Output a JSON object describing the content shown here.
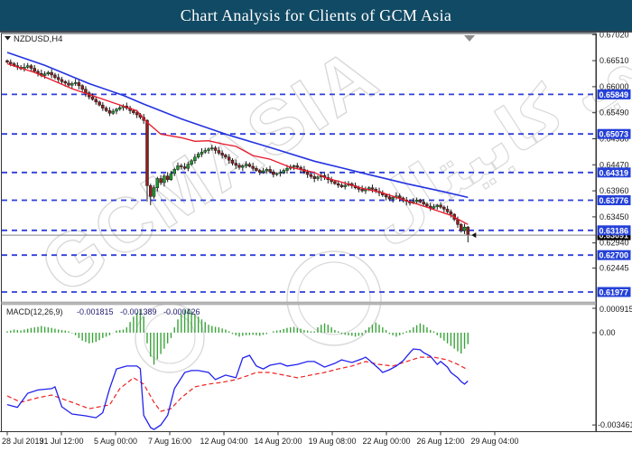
{
  "title_bar": {
    "title": "Chart Analysis for Clients of GCM Asia"
  },
  "chart": {
    "symbol_label": "NZDUSD,H4",
    "macd_label": "MACD(12,26,9)",
    "macd_values": [
      "-0.001815",
      "-0.001389",
      "-0.000426"
    ]
  },
  "watermark": {
    "text_main": "GCMASIA",
    "text_arabic": "ابي كابيتال"
  },
  "colors": {
    "title_bar_bg": "#114a64",
    "bull": "#1f9b2e",
    "bear": "#8e1f1f",
    "wick": "#1a1a1a",
    "ma_slow_blue": "#2433e0",
    "ma_fast_red": "#e8192c",
    "sr_line": "#2f3fd8",
    "price_tag_bg": "#2440d8",
    "current_tag_bg": "#000000",
    "current_line": "#808080",
    "macd_line": "#2222ee",
    "macd_signal": "#ee2222",
    "macd_hist": "#3aa33a",
    "watermark": "#d9d9d9",
    "axis_text": "#1a1a1a"
  },
  "chart_data": {
    "type": "candlestick",
    "symbol": "NZDUSD",
    "timeframe": "H4",
    "title": "Chart Analysis for Clients of GCM Asia",
    "x_labels": [
      "28 Jul 2019",
      "31 Jul 12:00",
      "5 Aug 00:00",
      "7 Aug 16:00",
      "12 Aug 04:00",
      "14 Aug 20:00",
      "19 Aug 08:00",
      "22 Aug 00:00",
      "26 Aug 12:00",
      "29 Aug 04:00"
    ],
    "price_axis_ticks": [
      "0.67020",
      "0.66510",
      "0.66000",
      "0.65490",
      "0.64980",
      "0.64470",
      "0.63960",
      "0.63450",
      "0.62940",
      "0.62445"
    ],
    "price_axis_range": {
      "top": 0.67025,
      "bottom": 0.6175
    },
    "sr_levels": [
      0.65849,
      0.65073,
      0.64319,
      0.63776,
      0.63186,
      0.627,
      0.61977
    ],
    "current_price": 0.63091,
    "current_price_label": "0.63091",
    "candles": {
      "closes": [
        0.6648,
        0.6645,
        0.6641,
        0.6638,
        0.6635,
        0.6638,
        0.6641,
        0.6636,
        0.663,
        0.6626,
        0.6622,
        0.6625,
        0.6628,
        0.6623,
        0.6618,
        0.6614,
        0.661,
        0.6607,
        0.6603,
        0.6606,
        0.6608,
        0.6602,
        0.6595,
        0.6588,
        0.658,
        0.6575,
        0.657,
        0.6564,
        0.6558,
        0.6553,
        0.6548,
        0.6552,
        0.6556,
        0.6559,
        0.6562,
        0.6558,
        0.6553,
        0.6549,
        0.6545,
        0.654,
        0.6534,
        0.6406,
        0.6385,
        0.6402,
        0.642,
        0.6412,
        0.6425,
        0.6418,
        0.643,
        0.6438,
        0.6445,
        0.6443,
        0.644,
        0.6448,
        0.6455,
        0.6462,
        0.6468,
        0.6472,
        0.6475,
        0.6478,
        0.648,
        0.6475,
        0.647,
        0.6466,
        0.6462,
        0.6456,
        0.645,
        0.6446,
        0.6442,
        0.6445,
        0.6448,
        0.6444,
        0.644,
        0.6436,
        0.6432,
        0.6435,
        0.6438,
        0.6433,
        0.6428,
        0.643,
        0.6432,
        0.6436,
        0.644,
        0.6443,
        0.6445,
        0.6442,
        0.6438,
        0.6433,
        0.6428,
        0.6424,
        0.642,
        0.6423,
        0.6426,
        0.6422,
        0.6418,
        0.6414,
        0.641,
        0.6407,
        0.6404,
        0.6407,
        0.641,
        0.6406,
        0.6402,
        0.6399,
        0.6396,
        0.6399,
        0.6402,
        0.6399,
        0.6395,
        0.6392,
        0.6388,
        0.6384,
        0.638,
        0.6383,
        0.6386,
        0.6382,
        0.6378,
        0.6375,
        0.6372,
        0.6375,
        0.6378,
        0.6374,
        0.637,
        0.6366,
        0.6362,
        0.6365,
        0.6368,
        0.6364,
        0.636,
        0.6355,
        0.635,
        0.634,
        0.633,
        0.6318,
        0.6325,
        0.6309
      ],
      "overrides": {
        "41": [
          0.6534,
          0.6536,
          0.6375,
          0.6406
        ],
        "42": [
          0.6406,
          0.641,
          0.6368,
          0.6385
        ],
        "135": [
          0.6325,
          0.6327,
          0.6295,
          0.6309
        ]
      }
    },
    "ma_blue": [
      [
        0,
        0.6667
      ],
      [
        11,
        0.6642
      ],
      [
        24,
        0.6606
      ],
      [
        34,
        0.6583
      ],
      [
        40,
        0.6566
      ],
      [
        51,
        0.6537
      ],
      [
        64,
        0.6507
      ],
      [
        77,
        0.6481
      ],
      [
        90,
        0.6454
      ],
      [
        104,
        0.6431
      ],
      [
        117,
        0.641
      ],
      [
        128,
        0.6394
      ],
      [
        135,
        0.6383
      ]
    ],
    "ma_red": [
      [
        0,
        0.6645
      ],
      [
        8,
        0.6628
      ],
      [
        19,
        0.6596
      ],
      [
        30,
        0.6571
      ],
      [
        38,
        0.6553
      ],
      [
        41,
        0.653
      ],
      [
        45,
        0.6507
      ],
      [
        51,
        0.65
      ],
      [
        55,
        0.6493
      ],
      [
        59,
        0.6494
      ],
      [
        63,
        0.6488
      ],
      [
        67,
        0.6483
      ],
      [
        72,
        0.6465
      ],
      [
        77,
        0.6458
      ],
      [
        83,
        0.6442
      ],
      [
        90,
        0.6432
      ],
      [
        93,
        0.6422
      ],
      [
        98,
        0.6413
      ],
      [
        104,
        0.6401
      ],
      [
        110,
        0.6392
      ],
      [
        114,
        0.6383
      ],
      [
        122,
        0.6366
      ],
      [
        130,
        0.6348
      ],
      [
        135,
        0.633
      ]
    ],
    "macd": {
      "params": "12,26,9",
      "values": [
        -0.001815,
        -0.001389,
        -0.000426
      ],
      "axis": {
        "top_label": "0.000915",
        "zero_label": "0.00",
        "bottom_label": "-0.003461",
        "top": 0.000915,
        "bottom": -0.003461
      },
      "histogram": [
        5e-05,
        8e-05,
        0.00012,
        0.0001,
        8e-05,
        0.00012,
        0.00015,
        0.00018,
        0.0002,
        0.00022,
        0.00025,
        0.00022,
        0.0002,
        0.00018,
        0.00015,
        0.00012,
        0.0001,
        8e-05,
        5e-05,
        -2e-05,
        -0.0001,
        -0.0002,
        -0.0003,
        -0.00035,
        -0.0004,
        -0.00038,
        -0.00035,
        -0.00028,
        -0.0002,
        -0.00015,
        -0.0001,
        -1e-05,
        8e-05,
        0.0001,
        0.00012,
        0.0002,
        0.0004,
        0.0006,
        0.00075,
        0.00085,
        0.0006,
        -0.0004,
        -0.0009,
        -0.0012,
        -0.001,
        -0.0008,
        -0.0006,
        -0.0004,
        -0.0002,
        0.0002,
        0.0005,
        0.0007,
        0.00085,
        0.0009,
        0.0008,
        0.0007,
        0.0006,
        0.0005,
        0.0004,
        0.0003,
        0.00025,
        0.00022,
        0.0002,
        0.00016,
        0.00012,
        5e-05,
        -5e-05,
        -0.0001,
        -0.00015,
        -0.00012,
        -0.0001,
        -9e-05,
        -8e-05,
        -0.0001,
        -0.00012,
        -8e-05,
        -5e-05,
        0,
        5e-05,
        8e-05,
        0.0001,
        0.00014,
        0.00018,
        0.0002,
        0.00022,
        0.00018,
        0.00015,
        0.0001,
        8e-05,
        5e-05,
        5e-05,
        0.0002,
        0.0003,
        0.00035,
        0.0003,
        0.0002,
        0.0001,
        5e-05,
        -5e-05,
        -8e-05,
        -0.0001,
        -0.00012,
        -0.00015,
        -0.00012,
        -0.0001,
        0.0001,
        0.0002,
        0.0003,
        0.00038,
        0.0003,
        0.0002,
        0.0001,
        -5e-05,
        -0.0001,
        -0.00015,
        -0.0001,
        -5e-05,
        5e-05,
        0.0001,
        0.0002,
        0.00028,
        0.00035,
        0.0003,
        0.0002,
        0.0001,
        5e-05,
        -0.0001,
        -0.0002,
        -0.0003,
        -0.0004,
        -0.0005,
        -0.0006,
        -0.0007,
        -0.00078,
        -0.0006,
        -0.000426
      ],
      "macd_line": [
        [
          0,
          -0.0027
        ],
        [
          3,
          -0.0028
        ],
        [
          6,
          -0.00227
        ],
        [
          9,
          -0.00215
        ],
        [
          13,
          -0.0021
        ],
        [
          14,
          -0.00203
        ],
        [
          16,
          -0.00278
        ],
        [
          19,
          -0.00305
        ],
        [
          23,
          -0.00312
        ],
        [
          26,
          -0.00319
        ],
        [
          28,
          -0.003
        ],
        [
          30,
          -0.0021
        ],
        [
          32,
          -0.00136
        ],
        [
          35,
          -0.00125
        ],
        [
          38,
          -0.00125
        ],
        [
          39,
          -0.00135
        ],
        [
          40,
          -0.0031
        ],
        [
          42,
          -0.00356
        ],
        [
          43,
          -0.00363
        ],
        [
          45,
          -0.00346
        ],
        [
          47,
          -0.0031
        ],
        [
          49,
          -0.0021
        ],
        [
          52,
          -0.00149
        ],
        [
          54,
          -0.00142
        ],
        [
          56,
          -0.00142
        ],
        [
          59,
          -0.00149
        ],
        [
          61,
          -0.00176
        ],
        [
          64,
          -0.00159
        ],
        [
          67,
          -0.00169
        ],
        [
          69,
          -0.00095
        ],
        [
          71,
          -0.00085
        ],
        [
          73,
          -0.00125
        ],
        [
          75,
          -0.00136
        ],
        [
          77,
          -0.00122
        ],
        [
          80,
          -0.00115
        ],
        [
          82,
          -0.00125
        ],
        [
          85,
          -0.00119
        ],
        [
          88,
          -0.00108
        ],
        [
          90,
          -0.00108
        ],
        [
          93,
          -0.00129
        ],
        [
          96,
          -0.00115
        ],
        [
          98,
          -0.00102
        ],
        [
          101,
          -0.00112
        ],
        [
          104,
          -0.00098
        ],
        [
          105,
          -0.00092
        ],
        [
          106,
          -0.00102
        ],
        [
          109,
          -0.00136
        ],
        [
          110,
          -0.00149
        ],
        [
          112,
          -0.00139
        ],
        [
          114,
          -0.00125
        ],
        [
          116,
          -0.00105
        ],
        [
          118,
          -0.00075
        ],
        [
          119,
          -0.00061
        ],
        [
          121,
          -0.00064
        ],
        [
          122,
          -0.00075
        ],
        [
          124,
          -0.00088
        ],
        [
          126,
          -0.00119
        ],
        [
          127,
          -0.00108
        ],
        [
          129,
          -0.00129
        ],
        [
          130,
          -0.00149
        ],
        [
          132,
          -0.00169
        ],
        [
          133,
          -0.00183
        ],
        [
          134,
          -0.00193
        ],
        [
          135,
          -0.001815
        ]
      ],
      "signal_line": [
        [
          0,
          -0.00237
        ],
        [
          4,
          -0.00261
        ],
        [
          9,
          -0.00244
        ],
        [
          13,
          -0.00234
        ],
        [
          19,
          -0.00261
        ],
        [
          24,
          -0.00285
        ],
        [
          30,
          -0.00271
        ],
        [
          33,
          -0.0021
        ],
        [
          37,
          -0.00169
        ],
        [
          40,
          -0.00193
        ],
        [
          43,
          -0.00261
        ],
        [
          45,
          -0.00295
        ],
        [
          48,
          -0.00285
        ],
        [
          51,
          -0.00244
        ],
        [
          55,
          -0.00203
        ],
        [
          59,
          -0.00193
        ],
        [
          63,
          -0.00186
        ],
        [
          67,
          -0.00176
        ],
        [
          71,
          -0.00159
        ],
        [
          73,
          -0.00149
        ],
        [
          77,
          -0.00149
        ],
        [
          81,
          -0.00159
        ],
        [
          85,
          -0.00169
        ],
        [
          89,
          -0.00159
        ],
        [
          93,
          -0.00149
        ],
        [
          97,
          -0.00136
        ],
        [
          101,
          -0.00125
        ],
        [
          105,
          -0.00108
        ],
        [
          109,
          -0.00119
        ],
        [
          113,
          -0.00125
        ],
        [
          117,
          -0.00108
        ],
        [
          121,
          -0.00092
        ],
        [
          125,
          -0.00092
        ],
        [
          129,
          -0.00102
        ],
        [
          132,
          -0.00119
        ],
        [
          135,
          -0.001389
        ]
      ]
    }
  }
}
